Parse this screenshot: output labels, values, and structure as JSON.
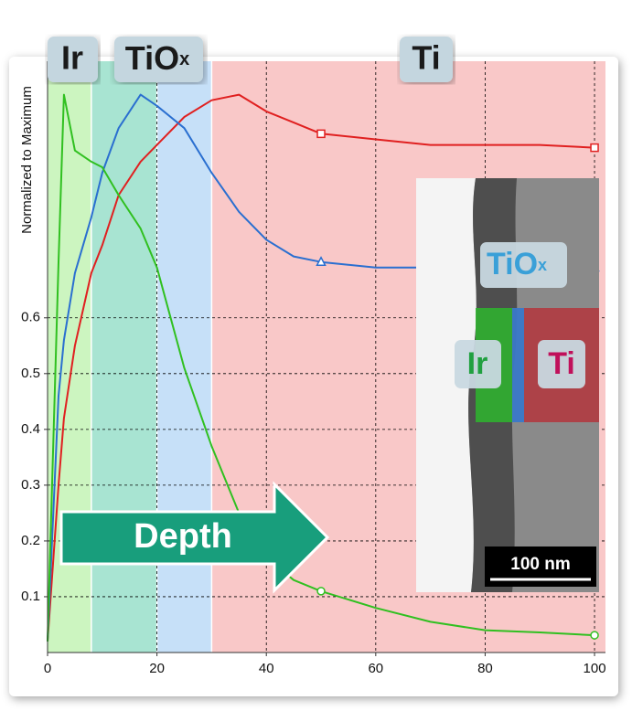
{
  "chart_data": {
    "type": "line",
    "ylabel": "Normalized to Maximum",
    "x": [
      0,
      2,
      3,
      5,
      8,
      10,
      13,
      17,
      20,
      25,
      30,
      35,
      40,
      45,
      50,
      60,
      70,
      80,
      90,
      100
    ],
    "series": [
      {
        "name": "Ti",
        "color": "#e02020",
        "marker": "square",
        "values": [
          0.02,
          0.3,
          0.42,
          0.55,
          0.68,
          0.73,
          0.82,
          0.88,
          0.91,
          0.96,
          0.99,
          1.0,
          0.97,
          0.95,
          0.93,
          0.92,
          0.91,
          0.91,
          0.91,
          0.905
        ]
      },
      {
        "name": "TiOx",
        "color": "#2a6fd0",
        "marker": "triangle",
        "values": [
          0.02,
          0.46,
          0.56,
          0.68,
          0.78,
          0.86,
          0.94,
          1.0,
          0.98,
          0.94,
          0.86,
          0.79,
          0.74,
          0.71,
          0.7,
          0.69,
          0.69,
          0.69,
          0.69,
          0.69
        ]
      },
      {
        "name": "Ir",
        "color": "#30c020",
        "marker": "circle",
        "values": [
          0.02,
          0.7,
          1.0,
          0.9,
          0.88,
          0.87,
          0.82,
          0.76,
          0.69,
          0.51,
          0.37,
          0.25,
          0.17,
          0.13,
          0.11,
          0.08,
          0.055,
          0.04,
          0.036,
          0.031
        ]
      }
    ],
    "xlim": [
      0,
      102
    ],
    "ylim": [
      0,
      1.06
    ],
    "xticks": [
      0,
      20,
      40,
      60,
      80,
      100
    ],
    "yticks": [
      0.1,
      0.2,
      0.3,
      0.4,
      0.5,
      0.6
    ],
    "grid": true,
    "regions": [
      {
        "start": 0,
        "end": 8,
        "color": "#ccf5c0"
      },
      {
        "start": 8,
        "end": 20,
        "color": "#a8e4d2"
      },
      {
        "start": 20,
        "end": 30,
        "color": "#c6e0f8"
      },
      {
        "start": 30,
        "end": 102,
        "color": "#f9c8c8"
      }
    ],
    "region_labels": [
      {
        "main": "Ir",
        "sub": ""
      },
      {
        "main": "TiO",
        "sub": "x"
      },
      {
        "main": "Ti",
        "sub": ""
      }
    ],
    "arrow_label": "Depth",
    "inset": {
      "labels": [
        {
          "main": "TiO",
          "sub": "x"
        },
        {
          "main": "Ir",
          "sub": ""
        },
        {
          "main": "Ti",
          "sub": ""
        }
      ],
      "scale_bar": "100 nm"
    }
  }
}
